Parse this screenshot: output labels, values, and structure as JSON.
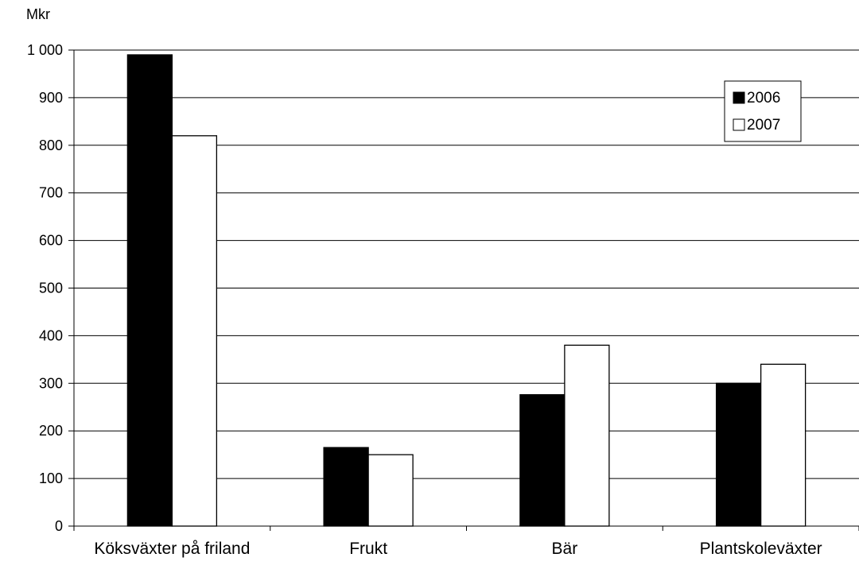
{
  "chart_data": {
    "type": "bar",
    "title": "",
    "xlabel": "",
    "ylabel": "Mkr",
    "ylim": [
      0,
      1000
    ],
    "y_ticks": [
      {
        "value": 0,
        "label": "0"
      },
      {
        "value": 100,
        "label": "100"
      },
      {
        "value": 200,
        "label": "200"
      },
      {
        "value": 300,
        "label": "300"
      },
      {
        "value": 400,
        "label": "400"
      },
      {
        "value": 500,
        "label": "500"
      },
      {
        "value": 600,
        "label": "600"
      },
      {
        "value": 700,
        "label": "700"
      },
      {
        "value": 800,
        "label": "800"
      },
      {
        "value": 900,
        "label": "900"
      },
      {
        "value": 1000,
        "label": "1 000"
      }
    ],
    "categories": [
      "Köksväxter på friland",
      "Frukt",
      "Bär",
      "Plantskoleväxter"
    ],
    "series": [
      {
        "name": "2006",
        "color": "#000000",
        "values": [
          990,
          165,
          276,
          300
        ]
      },
      {
        "name": "2007",
        "color": "#ffffff",
        "values": [
          820,
          150,
          380,
          340
        ]
      }
    ],
    "grid": true,
    "legend_position": "top-right"
  }
}
